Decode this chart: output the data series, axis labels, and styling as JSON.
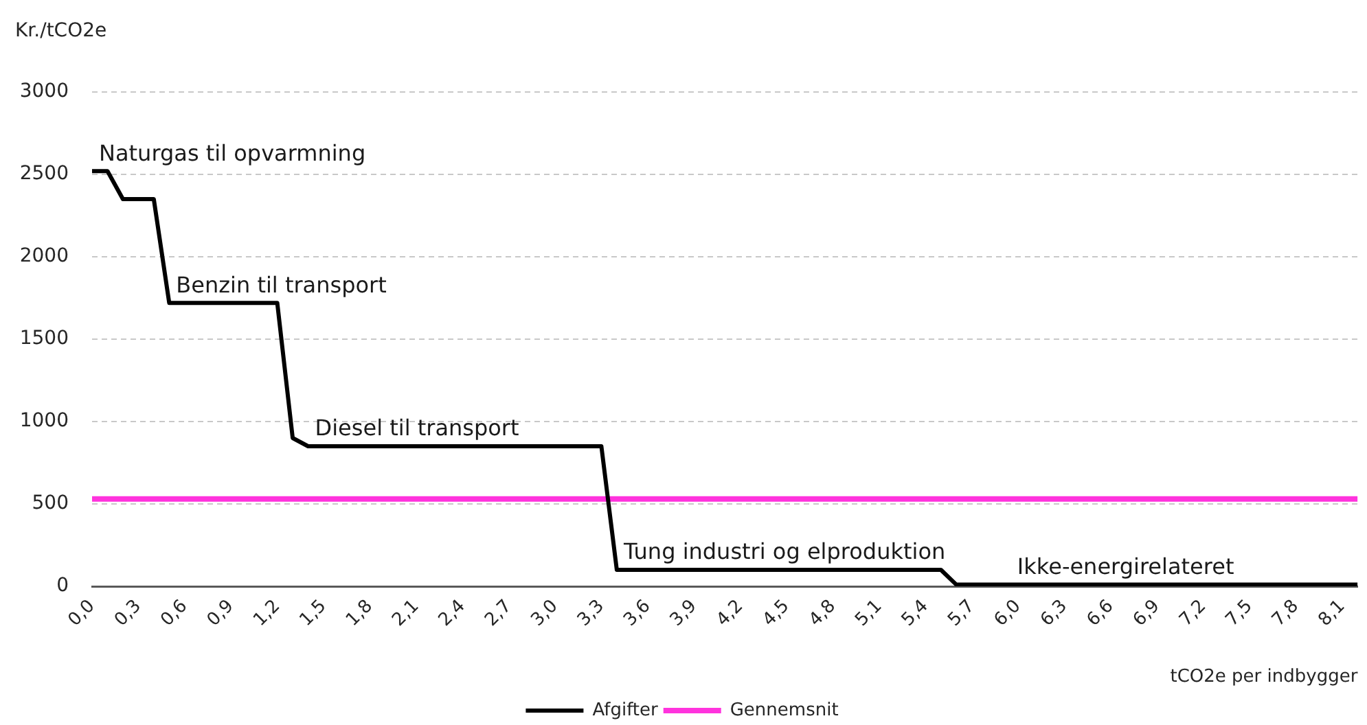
{
  "chart_data": {
    "type": "line",
    "xlabel": "tCO2e per indbygger",
    "ylabel": "Kr./tCO2e",
    "xlim": [
      0,
      8.2
    ],
    "xticks": [
      {
        "value": 0,
        "label": "0,0"
      },
      {
        "value": 0.3,
        "label": "0,3"
      },
      {
        "value": 0.6,
        "label": "0,6"
      },
      {
        "value": 0.9,
        "label": "0,9"
      },
      {
        "value": 1.2,
        "label": "1,2"
      },
      {
        "value": 1.5,
        "label": "1,5"
      },
      {
        "value": 1.8,
        "label": "1,8"
      },
      {
        "value": 2.1,
        "label": "2,1"
      },
      {
        "value": 2.4,
        "label": "2,4"
      },
      {
        "value": 2.7,
        "label": "2,7"
      },
      {
        "value": 3.0,
        "label": "3,0"
      },
      {
        "value": 3.3,
        "label": "3,3"
      },
      {
        "value": 3.6,
        "label": "3,6"
      },
      {
        "value": 3.9,
        "label": "3,9"
      },
      {
        "value": 4.2,
        "label": "4,2"
      },
      {
        "value": 4.5,
        "label": "4,5"
      },
      {
        "value": 4.8,
        "label": "4,8"
      },
      {
        "value": 5.1,
        "label": "5,1"
      },
      {
        "value": 5.4,
        "label": "5,4"
      },
      {
        "value": 5.7,
        "label": "5,7"
      },
      {
        "value": 6.0,
        "label": "6,0"
      },
      {
        "value": 6.3,
        "label": "6,3"
      },
      {
        "value": 6.6,
        "label": "6,6"
      },
      {
        "value": 6.9,
        "label": "6,9"
      },
      {
        "value": 7.2,
        "label": "7,2"
      },
      {
        "value": 7.5,
        "label": "7,5"
      },
      {
        "value": 7.8,
        "label": "7,8"
      },
      {
        "value": 8.1,
        "label": "8,1"
      }
    ],
    "ylim": [
      0,
      3000
    ],
    "yticks": [
      0,
      500,
      1000,
      1500,
      2000,
      2500,
      3000
    ],
    "grid": "y",
    "legend": "bottom",
    "series": [
      {
        "name": "Afgifter",
        "color": "#000000",
        "x": [
          0,
          0.1,
          0.2,
          0.4,
          0.5,
          1.2,
          1.3,
          1.4,
          3.3,
          3.4,
          5.5,
          5.6,
          8.2
        ],
        "values": [
          2520,
          2520,
          2350,
          2350,
          1720,
          1720,
          900,
          850,
          850,
          100,
          100,
          10,
          10
        ]
      },
      {
        "name": "Gennemsnit",
        "color": "#ff33dd",
        "x": [
          0,
          8.2
        ],
        "values": [
          530,
          530
        ]
      }
    ],
    "annotations": [
      {
        "text": "Naturgas til opvarmning",
        "x": 0,
        "y": 2520
      },
      {
        "text": "Benzin til transport",
        "x": 0.5,
        "y": 1720
      },
      {
        "text": "Diesel til transport",
        "x": 1.4,
        "y": 850
      },
      {
        "text": "Tung industri og elproduktion",
        "x": 3.4,
        "y": 100
      },
      {
        "text": "Ikke-energirelateret",
        "x": 5.95,
        "y": 10
      }
    ]
  }
}
